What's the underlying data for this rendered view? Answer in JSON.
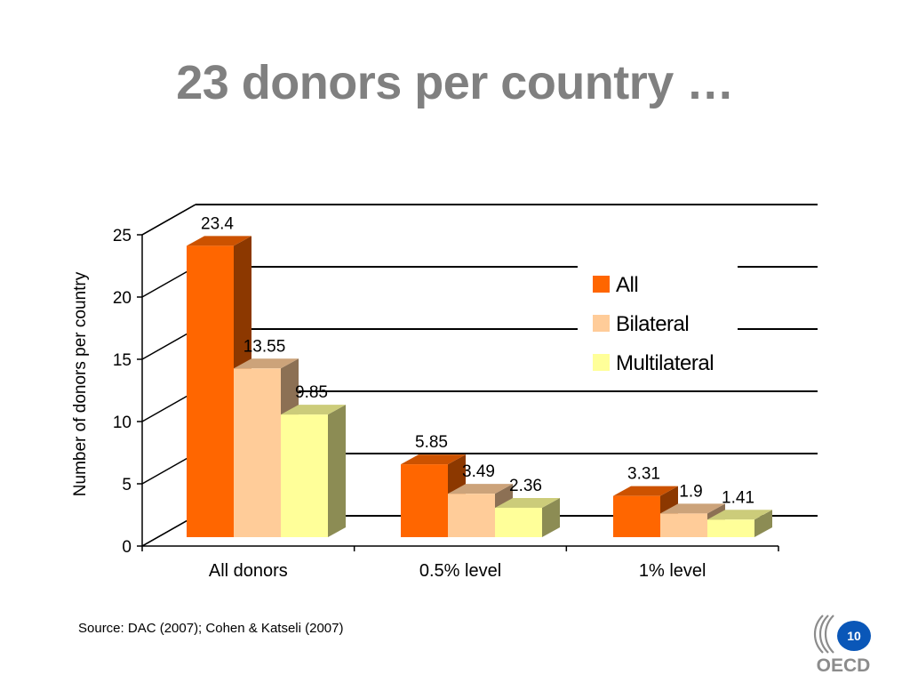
{
  "slide": {
    "title": "23 donors per country …",
    "source": "Source: DAC (2007); Cohen & Katseli (2007)",
    "page_number": "10",
    "logo_text": "OECD"
  },
  "colors": {
    "all": "#ff6600",
    "bilateral": "#ffcc99",
    "multilateral": "#ffff99",
    "title": "#808080",
    "page_badge": "#0a57b8"
  },
  "chart_data": {
    "type": "bar",
    "style": "3d-clustered",
    "categories": [
      "All donors",
      "0.5% level",
      "1% level"
    ],
    "series": [
      {
        "name": "All",
        "values": [
          23.4,
          5.85,
          3.31
        ]
      },
      {
        "name": "Bilateral",
        "values": [
          13.55,
          3.49,
          1.9
        ]
      },
      {
        "name": "Multilateral",
        "values": [
          9.85,
          2.36,
          1.41
        ]
      }
    ],
    "ylabel": "Number of donors per country",
    "xlabel": "",
    "ylim": [
      0,
      25
    ],
    "yticks": [
      0,
      5,
      10,
      15,
      20,
      25
    ],
    "grid": true,
    "legend_position": "right",
    "data_labels": true
  }
}
